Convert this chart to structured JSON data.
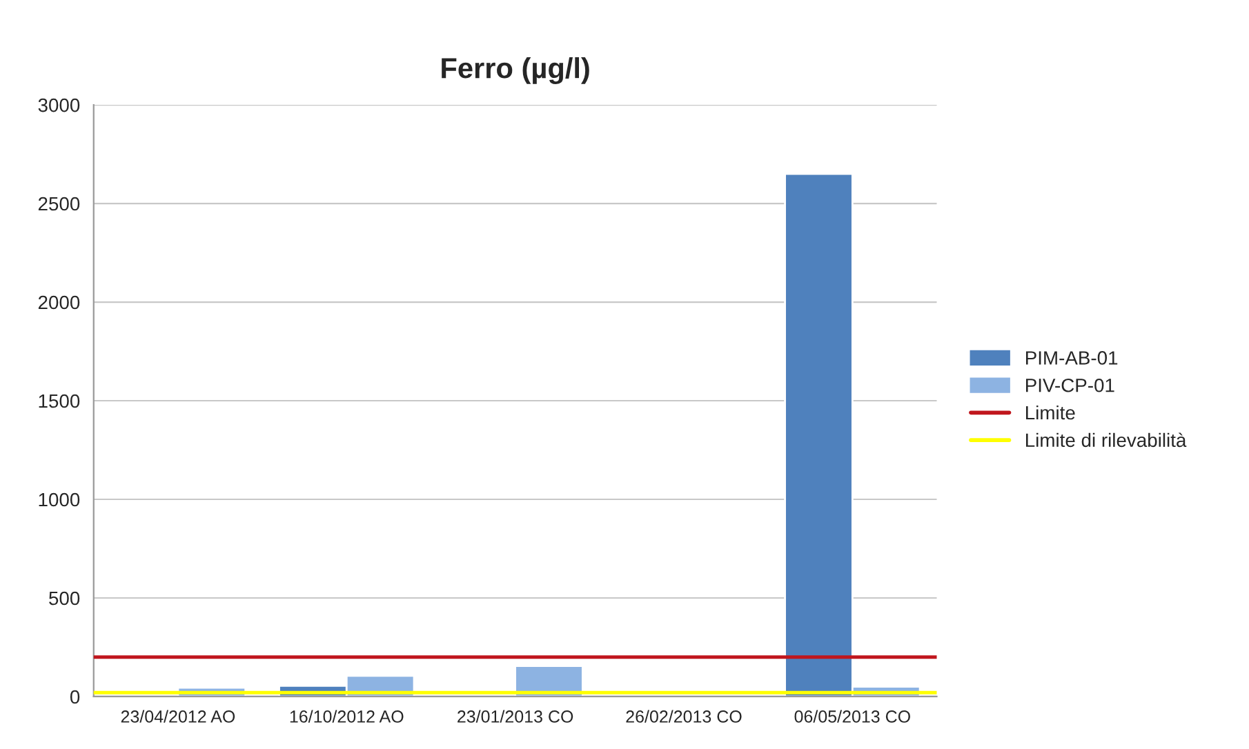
{
  "chart_data": {
    "type": "bar",
    "title": "Ferro (µg/l)",
    "categories": [
      "23/04/2012 AO",
      "16/10/2012 AO",
      "23/01/2013 CO",
      "26/02/2013 CO",
      "06/05/2013 CO"
    ],
    "series": [
      {
        "name": "PIM-AB-01",
        "color": "#4f81bd",
        "values": [
          null,
          55,
          null,
          null,
          2650
        ]
      },
      {
        "name": "PIV-CP-01",
        "color": "#8db3e2",
        "values": [
          45,
          105,
          155,
          null,
          50
        ]
      }
    ],
    "ref_lines": [
      {
        "axis": "y",
        "value": 200,
        "label": "Limite",
        "color": "#c0161d"
      },
      {
        "axis": "y",
        "value": 20,
        "label": "Limite di rilevabilità",
        "color": "#ffff00"
      }
    ],
    "ylim": [
      0,
      3000
    ],
    "yticks": [
      0,
      500,
      1000,
      1500,
      2000,
      2500,
      3000
    ],
    "grid": "y",
    "legend": "right"
  }
}
